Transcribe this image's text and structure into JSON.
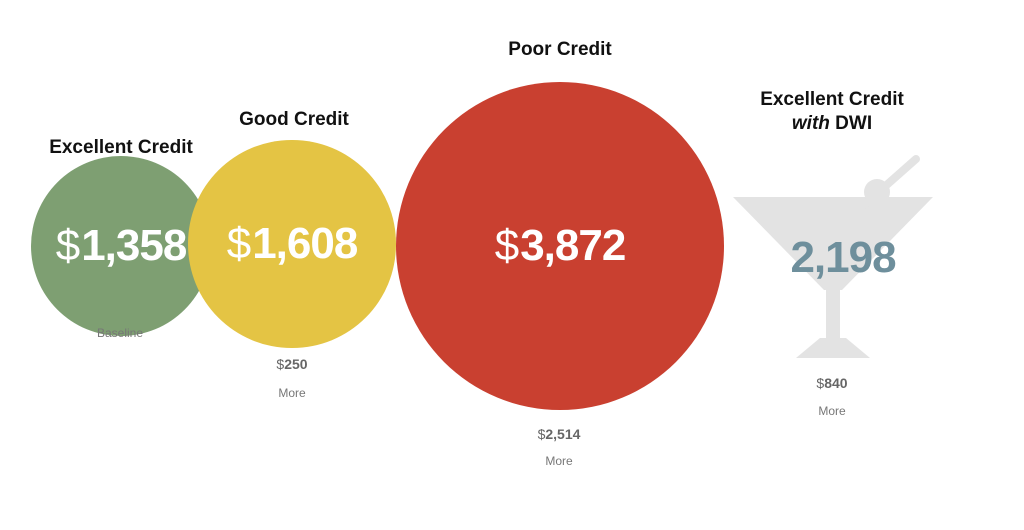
{
  "chart_data": {
    "type": "bubble",
    "currency_symbol": "$",
    "series": [
      {
        "title_line1": "Excellent Credit",
        "title_line2_italic": "",
        "title_line2_rest": "",
        "value": 1358,
        "value_label": "1,358",
        "show_dollar": true,
        "color": "#7e9f72",
        "diff_label": "",
        "sub_label": "Baseline"
      },
      {
        "title_line1": "Good Credit",
        "title_line2_italic": "",
        "title_line2_rest": "",
        "value": 1608,
        "value_label": "1,608",
        "show_dollar": true,
        "color": "#e4c444",
        "diff_label": "250",
        "sub_label": "More"
      },
      {
        "title_line1": "Poor Credit",
        "title_line2_italic": "",
        "title_line2_rest": "",
        "value": 3872,
        "value_label": "3,872",
        "show_dollar": true,
        "color": "#c94030",
        "diff_label": "2,514",
        "sub_label": "More"
      },
      {
        "title_line1": "Excellent Credit",
        "title_line2_italic": "with",
        "title_line2_rest": "DWI",
        "value": 2198,
        "value_label": "2,198",
        "show_dollar": false,
        "color": "#6e8f9c",
        "glass_color": "#e3e3e3",
        "diff_label": "840",
        "sub_label": "More"
      }
    ]
  }
}
